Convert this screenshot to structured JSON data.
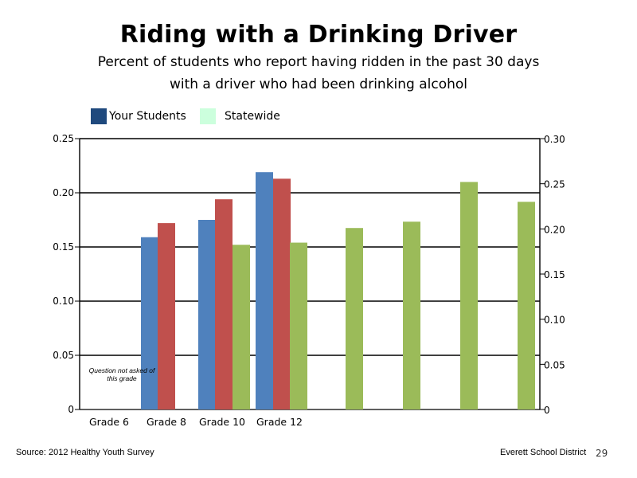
{
  "title": "Riding with a Drinking Driver",
  "subtitle_line1": "Percent of students who report having ridden in the past 30 days",
  "subtitle_line2": "with a driver who had been drinking alcohol",
  "legend": [
    {
      "label": "Your Students",
      "color": "#1F497D"
    },
    {
      "label": "Statewide",
      "color": "#CCFFDD"
    }
  ],
  "chart_data": {
    "type": "bar",
    "categories": [
      "Grade 6",
      "Grade 8",
      "Grade 10",
      "Grade 12"
    ],
    "left_axis": {
      "ticks": [
        "0",
        "0.05",
        "0.10",
        "0.15",
        "0.20",
        "0.25"
      ],
      "ylim": [
        0,
        0.25
      ]
    },
    "right_axis": {
      "ticks": [
        "0",
        "0.05",
        "0.10",
        "0.15",
        "0.20",
        "0.25",
        "0.30"
      ],
      "ylim": [
        0,
        0.3
      ]
    },
    "grid": true,
    "bars": [
      {
        "color": "#4F81BD",
        "axis": "left",
        "value": 0.159
      },
      {
        "color": "#C0504D",
        "axis": "left",
        "value": 0.172
      },
      {
        "color": "#4F81BD",
        "axis": "left",
        "value": 0.175
      },
      {
        "color": "#C0504D",
        "axis": "left",
        "value": 0.194
      },
      {
        "color": "#9BBB59",
        "axis": "left",
        "value": 0.152
      },
      {
        "color": "#4F81BD",
        "axis": "left",
        "value": 0.219
      },
      {
        "color": "#C0504D",
        "axis": "left",
        "value": 0.213
      },
      {
        "color": "#9BBB59",
        "axis": "left",
        "value": 0.154
      },
      {
        "color": "#9BBB59",
        "axis": "right",
        "value": 0.201
      },
      {
        "color": "#9BBB59",
        "axis": "right",
        "value": 0.208
      },
      {
        "color": "#9BBB59",
        "axis": "right",
        "value": 0.252
      },
      {
        "color": "#9BBB59",
        "axis": "right",
        "value": 0.23
      }
    ],
    "annotation": "Question not asked of this grade"
  },
  "footer": {
    "source": "Source: 2012 Healthy Youth Survey",
    "district": "Everett School District",
    "page": "29"
  }
}
